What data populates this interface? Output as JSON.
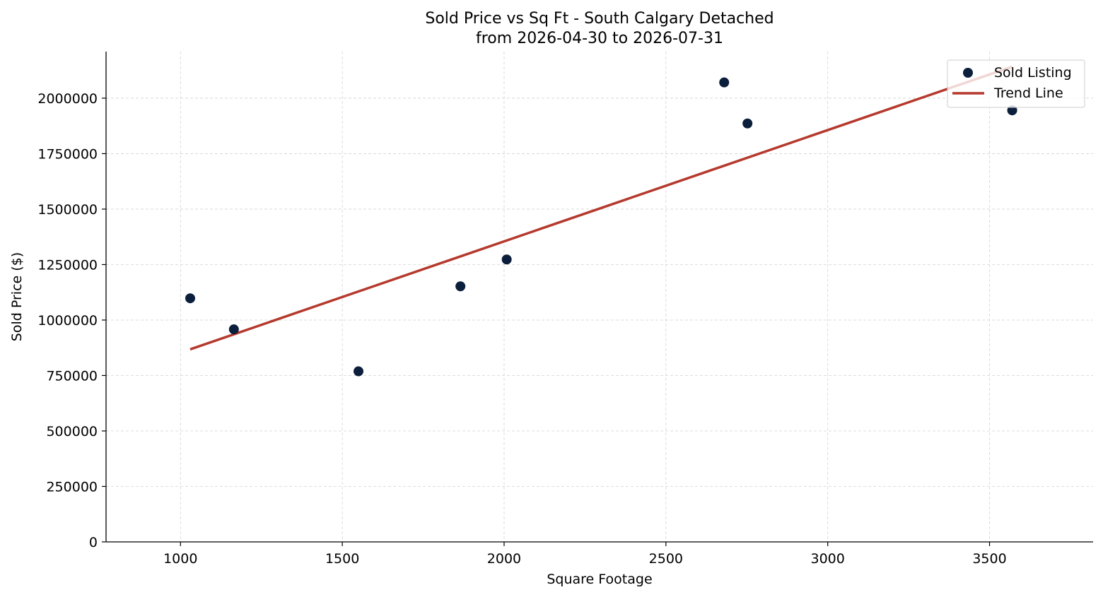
{
  "chart_data": {
    "type": "scatter",
    "title": "Sold Price vs Sq Ft - South Calgary Detached",
    "subtitle": "from 2026-04-30 to 2026-07-31",
    "xlabel": "Square Footage",
    "ylabel": "Sold Price ($)",
    "xlim": [
      770,
      3820
    ],
    "ylim": [
      0,
      2210000
    ],
    "x_ticks": [
      1000,
      1500,
      2000,
      2500,
      3000,
      3500
    ],
    "x_tick_labels": [
      "1000",
      "1500",
      "2000",
      "2500",
      "3000",
      "3500"
    ],
    "y_ticks": [
      0,
      250000,
      500000,
      750000,
      1000000,
      1250000,
      1500000,
      1750000,
      2000000
    ],
    "y_tick_labels": [
      "0",
      "250000",
      "500000",
      "750000",
      "1000000",
      "1250000",
      "1500000",
      "1750000",
      "2000000"
    ],
    "grid": true,
    "legend_position": "top-right",
    "series": [
      {
        "name": "Sold Listing",
        "kind": "scatter",
        "color": "#0b1e3b",
        "points": [
          {
            "x": 1030,
            "y": 1098000
          },
          {
            "x": 1165,
            "y": 958000
          },
          {
            "x": 1550,
            "y": 769000
          },
          {
            "x": 1865,
            "y": 1152000
          },
          {
            "x": 2008,
            "y": 1273000
          },
          {
            "x": 2680,
            "y": 2071000
          },
          {
            "x": 2752,
            "y": 1886000
          },
          {
            "x": 3570,
            "y": 1945000
          }
        ]
      },
      {
        "name": "Trend Line",
        "kind": "line",
        "color": "#b5392d",
        "points": [
          {
            "x": 1030,
            "y": 868000
          },
          {
            "x": 3570,
            "y": 2142000
          }
        ]
      }
    ]
  }
}
